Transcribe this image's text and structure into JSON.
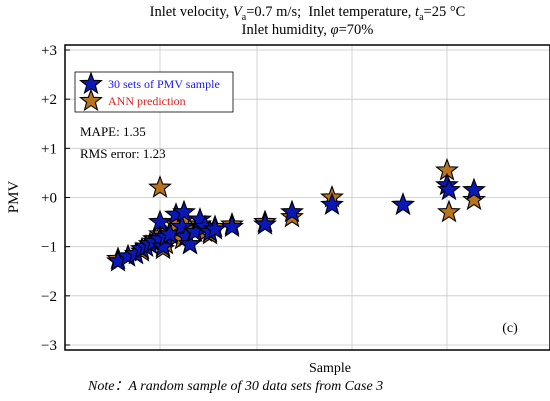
{
  "title_line1": "Inlet velocity, Vₐ=0.7 m/s;  Inlet temperature, tₐ=25 °C",
  "title_line2": "Inlet humidity, φ=70%",
  "note_label": "Note",
  "note_text": "：A random sample of 30 data sets from Case 3",
  "colors": {
    "pmv_sample": "#0a18b8",
    "ann_prediction": "#b8731e",
    "legend_text_blue": "#1a1ae6",
    "legend_text_red": "#e02020",
    "grid": "#c8c8c8"
  },
  "chart_data": {
    "type": "scatter",
    "title": "Inlet velocity, Va=0.7 m/s;  Inlet temperature, ta=25 °C  Inlet humidity, φ=70%",
    "xlabel": "Sample",
    "ylabel": "PMV",
    "ylim": [
      -3,
      3
    ],
    "yticks": [
      "+3",
      "+2",
      "+1",
      "+0",
      "−1",
      "−2",
      "−3"
    ],
    "ytick_values": [
      3,
      2,
      1,
      0,
      -1,
      -2,
      -3
    ],
    "xticks": [],
    "grid": true,
    "legend_position": "top-left",
    "panel_label": "(c)",
    "annotations": [
      "MAPE: 1.35",
      "RMS error: 1.23"
    ],
    "series": [
      {
        "name": "30 sets of PMV sample",
        "marker": "star",
        "points": [
          [
            1,
            -1.3
          ],
          [
            2,
            -1.2
          ],
          [
            3,
            -1.15
          ],
          [
            4,
            -1.05
          ],
          [
            5,
            -1.0
          ],
          [
            6,
            -0.95
          ],
          [
            7,
            -0.9
          ],
          [
            8,
            -0.85
          ],
          [
            9,
            -1.0
          ],
          [
            10,
            -0.8
          ],
          [
            11,
            -0.75
          ],
          [
            12,
            -0.35
          ],
          [
            13,
            -0.5
          ],
          [
            14,
            -0.6
          ],
          [
            15,
            -0.8
          ],
          [
            16,
            -0.95
          ],
          [
            17,
            -0.3
          ],
          [
            18,
            -0.7
          ],
          [
            19,
            -0.45
          ],
          [
            20,
            -0.6
          ],
          [
            21,
            -0.7
          ],
          [
            22,
            -0.65
          ],
          [
            23,
            -0.6
          ],
          [
            24,
            -0.55
          ],
          [
            25,
            -0.3
          ],
          [
            26,
            -0.15
          ],
          [
            27,
            -0.15
          ],
          [
            28,
            0.25
          ],
          [
            29,
            0.15
          ],
          [
            30,
            0.15
          ]
        ]
      },
      {
        "name": "ANN prediction",
        "marker": "star",
        "points": [
          [
            1,
            -1.25
          ],
          [
            2,
            -1.2
          ],
          [
            3,
            -1.15
          ],
          [
            4,
            -1.1
          ],
          [
            5,
            -1.0
          ],
          [
            6,
            -0.95
          ],
          [
            7,
            -0.85
          ],
          [
            8,
            -0.75
          ],
          [
            9,
            -1.05
          ],
          [
            10,
            -0.95
          ],
          [
            11,
            -0.7
          ],
          [
            12,
            -0.55
          ],
          [
            13,
            0.2
          ],
          [
            14,
            -0.85
          ],
          [
            15,
            -0.6
          ],
          [
            16,
            -0.95
          ],
          [
            17,
            -0.45
          ],
          [
            18,
            -0.65
          ],
          [
            19,
            -0.55
          ],
          [
            20,
            -0.7
          ],
          [
            21,
            -0.75
          ],
          [
            22,
            -0.6
          ],
          [
            23,
            -0.55
          ],
          [
            24,
            -0.5
          ],
          [
            25,
            -0.4
          ],
          [
            26,
            0.0
          ],
          [
            27,
            -0.15
          ],
          [
            28,
            0.55
          ],
          [
            29,
            -0.05
          ],
          [
            30,
            -0.3
          ]
        ]
      }
    ],
    "legend": [
      "30 sets of PMV sample",
      "ANN prediction"
    ]
  }
}
